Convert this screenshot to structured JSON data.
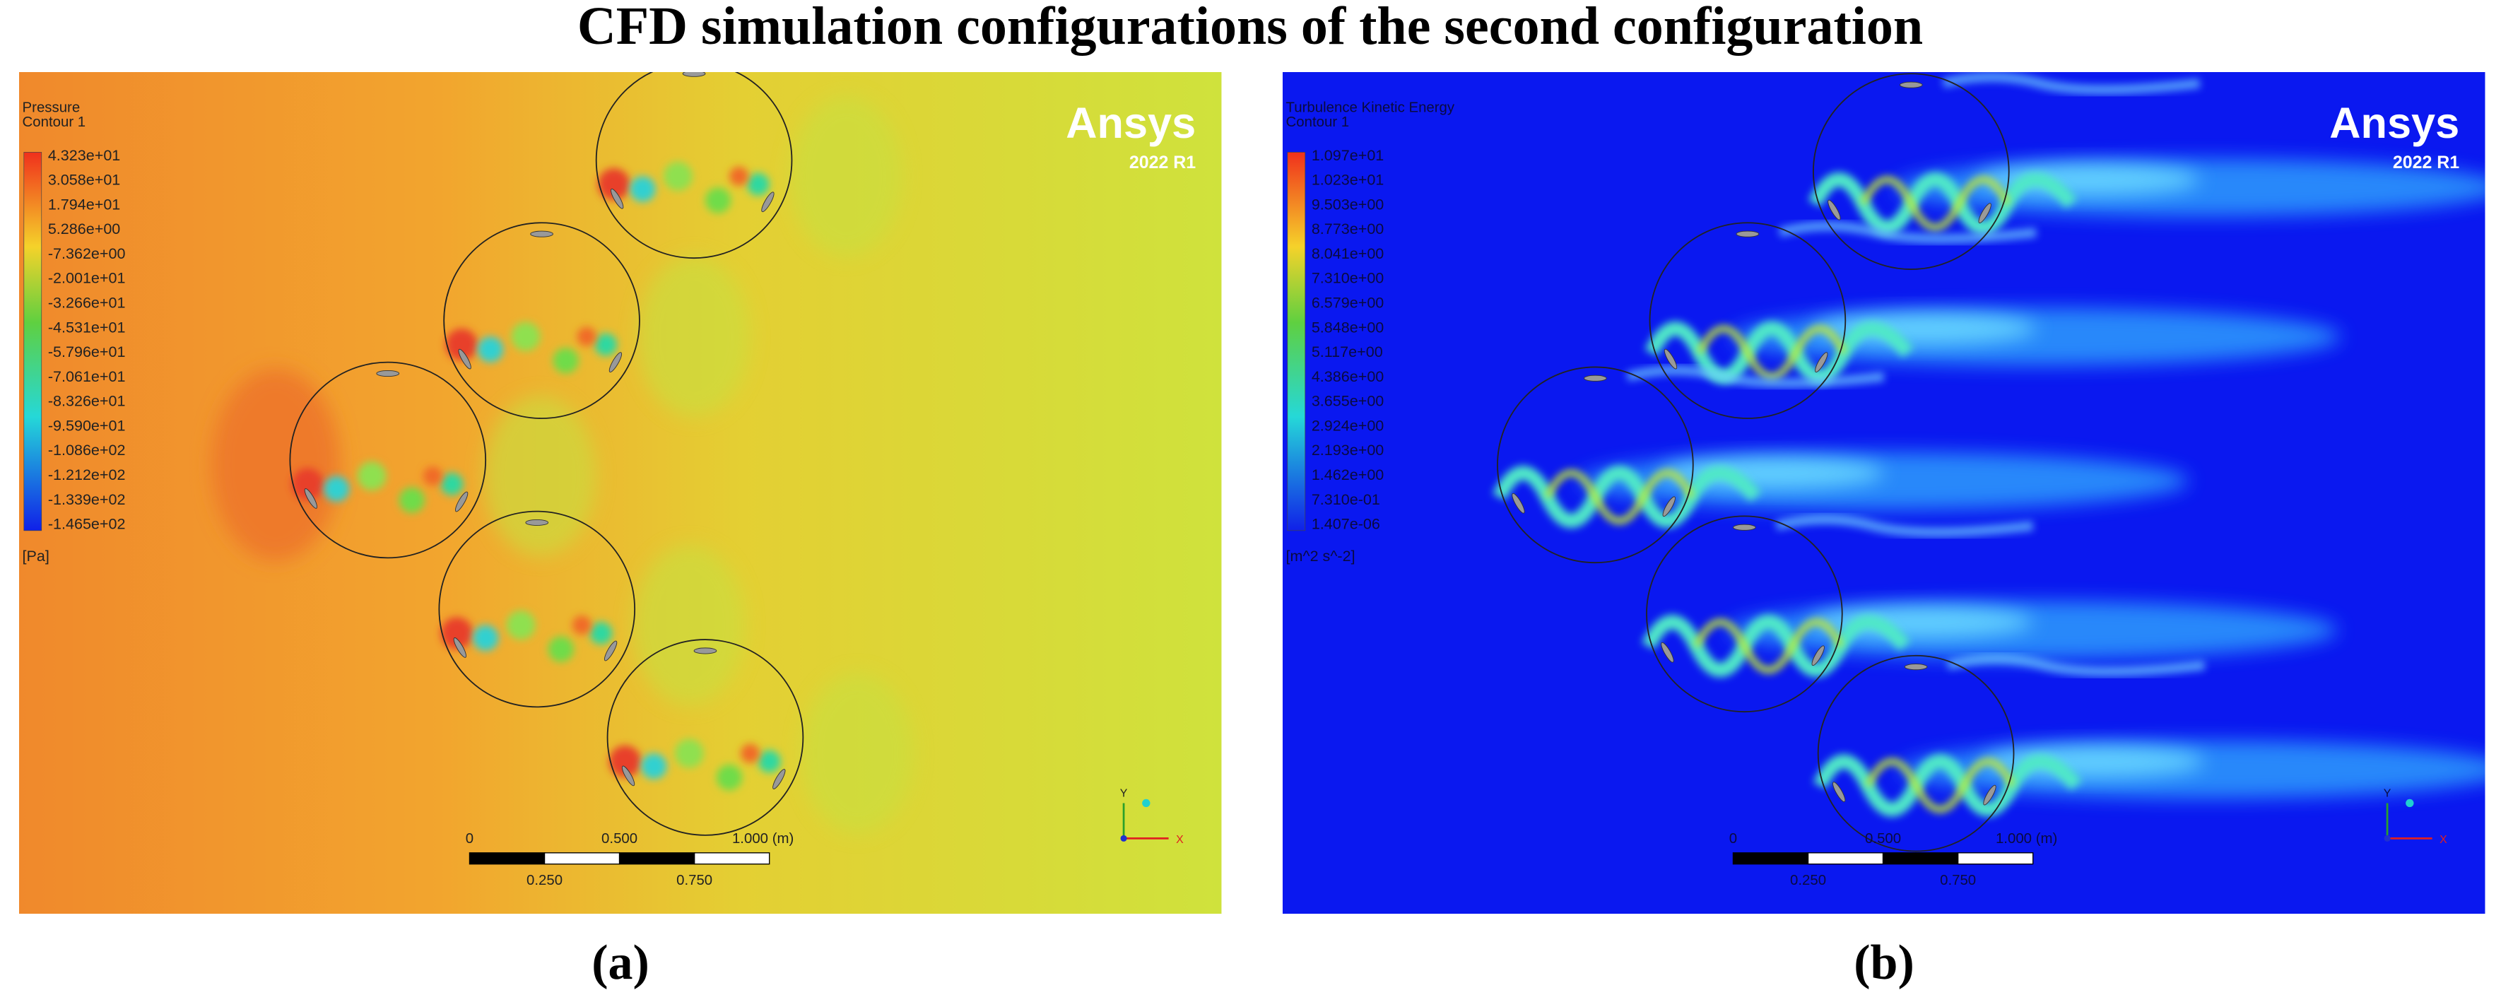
{
  "title": "CFD simulation configurations of the second configuration",
  "panels": [
    {
      "label": "(a)",
      "legend": {
        "title": "Pressure",
        "subtitle": "Contour 1",
        "values": [
          "4.323e+01",
          "3.058e+01",
          "1.794e+01",
          "5.286e+00",
          "-7.362e+00",
          "-2.001e+01",
          "-3.266e+01",
          "-4.531e+01",
          "-5.796e+01",
          "-7.061e+01",
          "-8.326e+01",
          "-9.590e+01",
          "-1.086e+02",
          "-1.212e+02",
          "-1.339e+02",
          "-1.465e+02"
        ],
        "unit": "[Pa]"
      },
      "logo": "Ansys",
      "version": "2022 R1",
      "scale_bar": {
        "top": [
          "0",
          "0.500",
          "1.000 (m)"
        ],
        "bottom": [
          "0.250",
          "0.750"
        ]
      },
      "axes": {
        "y": "Y",
        "x": "X"
      }
    },
    {
      "label": "(b)",
      "legend": {
        "title": "Turbulence Kinetic Energy",
        "subtitle": "Contour 1",
        "values": [
          "1.097e+01",
          "1.023e+01",
          "9.503e+00",
          "8.773e+00",
          "8.041e+00",
          "7.310e+00",
          "6.579e+00",
          "5.848e+00",
          "5.117e+00",
          "4.386e+00",
          "3.655e+00",
          "2.924e+00",
          "2.193e+00",
          "1.462e+00",
          "7.310e-01",
          "1.407e-06"
        ],
        "unit": "[m^2 s^-2]"
      },
      "logo": "Ansys",
      "version": "2022 R1",
      "scale_bar": {
        "top": [
          "0",
          "0.500",
          "1.000 (m)"
        ],
        "bottom": [
          "0.250",
          "0.750"
        ]
      },
      "axes": {
        "y": "Y",
        "x": "X"
      }
    }
  ]
}
